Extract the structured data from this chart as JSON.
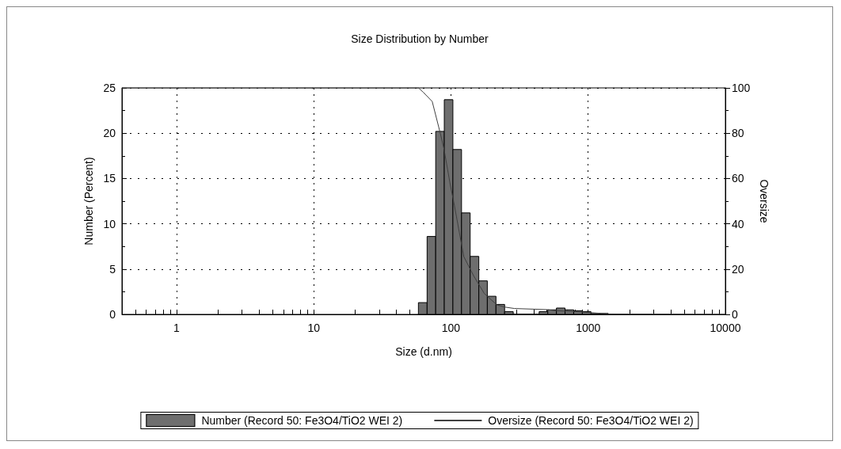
{
  "chart_data": {
    "type": "histogram",
    "title": "Size Distribution by Number",
    "xlabel": "Size (d.nm)",
    "ylabel": "Number (Percent)",
    "y2label": "Oversize",
    "log": "x",
    "grid": true,
    "legend": "bottom",
    "bins": [
      57.9,
      67.0,
      77.4,
      89.4,
      103.3,
      119.4,
      138.0,
      159.6,
      184.1,
      212.8,
      246.0,
      284.4,
      328.8,
      380.0,
      439.3,
      507.8,
      587.0,
      678.6,
      784.4,
      906.7,
      1048,
      1212,
      1401
    ],
    "xlim": [
      0.4,
      10000
    ],
    "xticks": [
      {
        "value": 0.5,
        "label": null
      },
      {
        "value": 0.6,
        "label": null
      },
      {
        "value": 0.7,
        "label": null
      },
      {
        "value": 0.8,
        "label": null
      },
      {
        "value": 0.9,
        "label": null
      },
      1,
      {
        "value": 2,
        "label": null
      },
      {
        "value": 3,
        "label": null
      },
      {
        "value": 4,
        "label": null
      },
      {
        "value": 5,
        "label": null
      },
      {
        "value": 6,
        "label": null
      },
      {
        "value": 7,
        "label": null
      },
      {
        "value": 8,
        "label": null
      },
      {
        "value": 9,
        "label": null
      },
      10,
      {
        "value": 20,
        "label": null
      },
      {
        "value": 30,
        "label": null
      },
      {
        "value": 40,
        "label": null
      },
      {
        "value": 50,
        "label": null
      },
      {
        "value": 60,
        "label": null
      },
      {
        "value": 70,
        "label": null
      },
      {
        "value": 80,
        "label": null
      },
      {
        "value": 90,
        "label": null
      },
      100,
      {
        "value": 200,
        "label": null
      },
      {
        "value": 300,
        "label": null
      },
      {
        "value": 400,
        "label": null
      },
      {
        "value": 500,
        "label": null
      },
      {
        "value": 600,
        "label": null
      },
      {
        "value": 700,
        "label": null
      },
      {
        "value": 800,
        "label": null
      },
      {
        "value": 900,
        "label": null
      },
      1000,
      {
        "value": 2000,
        "label": null
      },
      {
        "value": 3000,
        "label": null
      },
      {
        "value": 4000,
        "label": null
      },
      {
        "value": 5000,
        "label": null
      },
      {
        "value": 6000,
        "label": null
      },
      {
        "value": 7000,
        "label": null
      },
      {
        "value": 8000,
        "label": null
      },
      {
        "value": 9000,
        "label": null
      },
      10000
    ],
    "ylim": [
      0,
      25
    ],
    "yticks": [
      0,
      5,
      10,
      15,
      20,
      25
    ],
    "y2lim": [
      0,
      100
    ],
    "y2ticks": [
      0,
      20,
      40,
      60,
      80,
      100
    ],
    "series": [
      {
        "name": "Number (Record 50: Fe3O4/TiO2 WEI 2)",
        "color": "#6e6e6e",
        "values": [
          1.3,
          8.6,
          20.2,
          23.7,
          18.2,
          11.2,
          6.4,
          3.7,
          2.0,
          1.1,
          0.3,
          0,
          0,
          0,
          0.3,
          0.5,
          0.7,
          0.5,
          0.4,
          0.3,
          0.1,
          0.1
        ]
      },
      {
        "type": "line",
        "axis": "y2",
        "marker": "none",
        "name": "Oversize (Record 50: Fe3O4/TiO2 WEI 2)",
        "color": "#404040",
        "x": [
          0.4,
          40,
          58,
          63,
          73,
          83,
          89,
          99,
          106,
          124,
          147,
          175,
          216,
          248,
          290,
          500,
          565,
          920,
          1393,
          10000
        ],
        "values": [
          100,
          100,
          100,
          98,
          94,
          80.7,
          73,
          57,
          48,
          25.5,
          16.8,
          9.2,
          4.2,
          3.2,
          2.6,
          2.1,
          1.7,
          1.0,
          0.2,
          0
        ]
      }
    ]
  }
}
